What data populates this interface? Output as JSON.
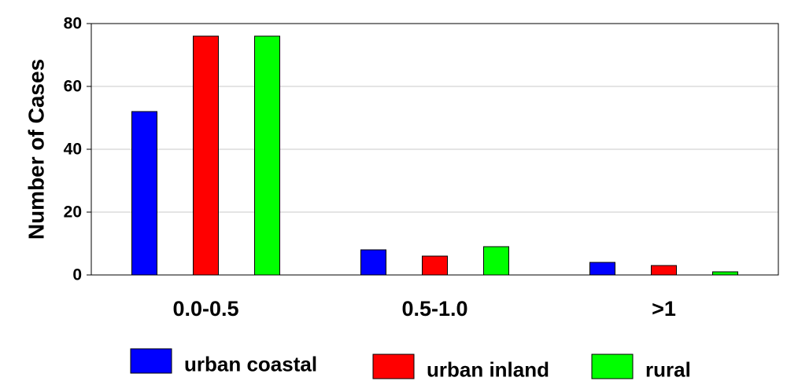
{
  "chart_data": {
    "type": "bar",
    "title": "",
    "xlabel": "",
    "ylabel": "Number of Cases",
    "ylim": [
      0,
      80
    ],
    "yticks": [
      0,
      20,
      40,
      60,
      80
    ],
    "grid": true,
    "legend_position": "bottom",
    "categories": [
      "0.0-0.5",
      "0.5-1.0",
      ">1"
    ],
    "series": [
      {
        "name": "urban coastal",
        "color": "#0000ff",
        "values": [
          52,
          8,
          4
        ]
      },
      {
        "name": "urban inland",
        "color": "#ff0000",
        "values": [
          76,
          6,
          3
        ]
      },
      {
        "name": "rural",
        "color": "#00ff00",
        "values": [
          76,
          9,
          1
        ]
      }
    ]
  }
}
